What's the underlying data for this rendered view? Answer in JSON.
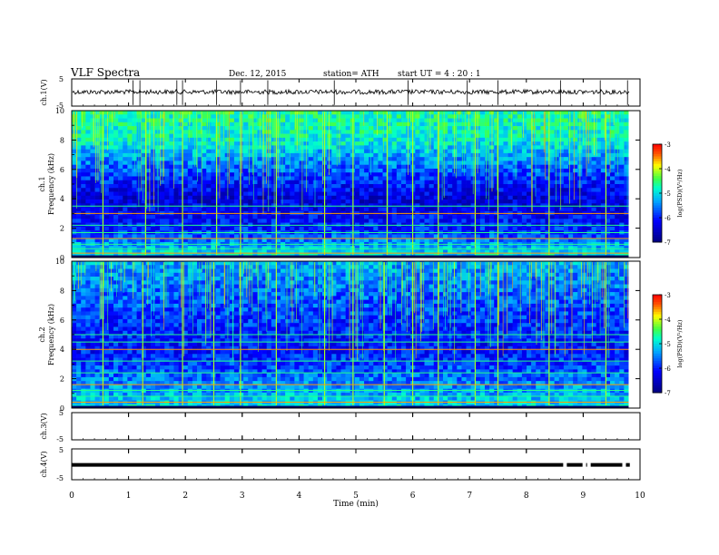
{
  "header": {
    "title": "VLF  Spectra",
    "date": "Dec. 12, 2015",
    "station": "station= ATH",
    "start": "start  UT  =   4  : 20 : 1"
  },
  "chart_data": [
    {
      "type": "line",
      "panel": "ch1-waveform",
      "ylabel": "ch.1(V)",
      "ylim": [
        -5,
        5
      ],
      "yticks": [
        "5",
        "-5"
      ],
      "xlim": [
        0,
        10
      ],
      "baseline": 0.2,
      "spike_times": [
        1.08,
        1.2,
        1.85,
        1.95,
        2.55,
        2.97,
        3.45,
        4.62,
        5.92,
        6.96,
        7.5,
        8.6,
        9.3,
        9.78
      ]
    },
    {
      "type": "heatmap",
      "panel": "ch1-spectrogram",
      "ylabel_lines": [
        "ch.1",
        "Frequency  (kHz)"
      ],
      "ylim": [
        0,
        10
      ],
      "yticks": [
        "0",
        "2",
        "4",
        "6",
        "8",
        "10"
      ],
      "xlim": [
        0,
        9.8
      ],
      "colorbar": {
        "label": "log(PSD)(V²/Hz)",
        "range": [
          -7,
          -3
        ],
        "ticks": [
          "-3",
          "-4",
          "-5",
          "-6",
          "-7"
        ]
      },
      "spectrum_profile_khz": [
        0,
        2,
        4,
        6,
        8,
        10
      ],
      "spectrum_profile_logpsd": [
        -4.9,
        -6.0,
        -6.4,
        -5.7,
        -4.9,
        -4.7
      ],
      "tone_lines_khz": [
        0.3,
        0.6,
        0.9,
        1.3,
        1.7,
        2.2,
        3.0,
        3.5
      ],
      "burst_times": [
        0.55,
        1.3,
        1.95,
        2.55,
        2.97,
        3.6,
        4.45,
        4.95,
        5.55,
        6.0,
        6.45,
        7.1,
        7.5,
        8.4,
        9.4
      ]
    },
    {
      "type": "heatmap",
      "panel": "ch2-spectrogram",
      "ylabel_lines": [
        "ch.2",
        "Frequency  (kHz)"
      ],
      "ylim": [
        0,
        10
      ],
      "yticks": [
        "0",
        "2",
        "4",
        "6",
        "8",
        "10"
      ],
      "xlim": [
        0,
        9.8
      ],
      "colorbar": {
        "label": "log(PSD)(V²/Hz)",
        "range": [
          -7,
          -3
        ],
        "ticks": [
          "-3",
          "-4",
          "-5",
          "-6",
          "-7"
        ]
      },
      "spectrum_profile_khz": [
        0,
        2,
        4,
        6,
        8,
        10
      ],
      "spectrum_profile_logpsd": [
        -5.0,
        -5.6,
        -6.1,
        -5.9,
        -5.6,
        -5.3
      ],
      "tone_lines_khz": [
        0.4,
        0.8,
        1.2,
        1.6,
        2.4,
        3.2,
        4.0,
        4.5,
        5.0
      ],
      "burst_times": [
        0.55,
        1.25,
        1.95,
        2.5,
        2.97,
        3.6,
        4.45,
        4.95,
        5.5,
        6.0,
        6.45,
        7.1,
        7.5,
        8.4,
        9.4
      ]
    },
    {
      "type": "line",
      "panel": "ch3-waveform",
      "ylabel": "ch.3(V)",
      "ylim": [
        -5,
        5
      ],
      "yticks": [
        "5",
        "-5"
      ],
      "xlim": [
        0,
        10
      ],
      "baseline": null
    },
    {
      "type": "line",
      "panel": "ch4-waveform",
      "ylabel": "ch.4(V)",
      "ylim": [
        -5,
        5
      ],
      "yticks": [
        "5",
        "-5"
      ],
      "xlim": [
        0,
        10
      ],
      "baseline": -0.2,
      "gap_times": [
        8.68,
        9.02,
        9.1,
        9.72
      ]
    }
  ],
  "xaxis": {
    "label": "Time  (min)",
    "ticks": [
      "0",
      "1",
      "2",
      "3",
      "4",
      "5",
      "6",
      "7",
      "8",
      "9",
      "10"
    ]
  }
}
